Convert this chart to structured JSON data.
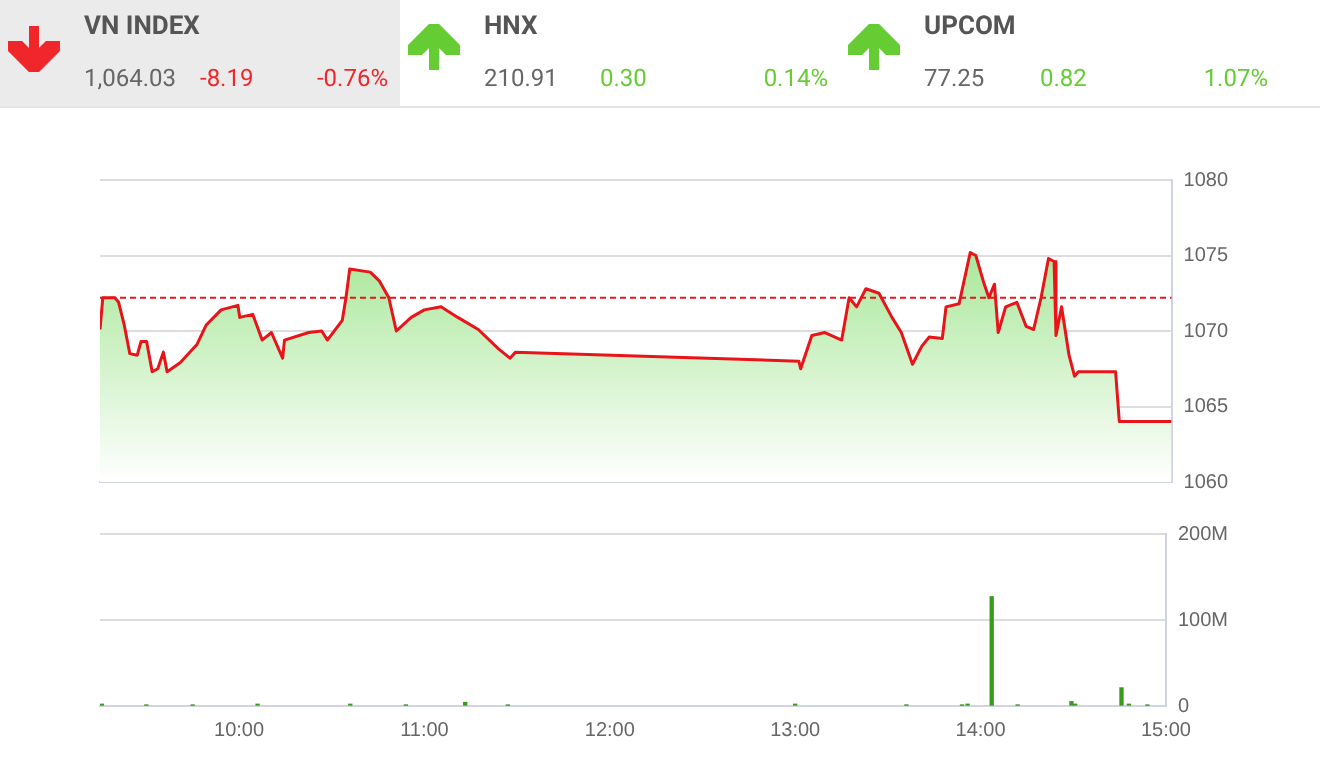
{
  "chart_data": [
    {
      "type": "other",
      "title": "VN INDEX",
      "annotations": [
        "1,064.03",
        "-8.19",
        "-0.76%"
      ],
      "color": "#f0262b"
    },
    {
      "type": "other",
      "title": "HNX",
      "annotations": [
        "210.91",
        "0.30",
        "0.14%"
      ],
      "color": "#66cc33"
    },
    {
      "type": "other",
      "title": "UPCOM",
      "annotations": [
        "77.25",
        "0.82",
        "1.07%"
      ],
      "color": "#66cc33"
    },
    {
      "type": "area",
      "xlim": [
        9.25,
        15
      ],
      "ylim": [
        1060,
        1080
      ],
      "yticks": [
        1060,
        1065,
        1070,
        1075,
        1080
      ],
      "grid": "y",
      "tick_labels": "y",
      "ref_lines": [
        {
          "axis": "y",
          "value": 1072.2,
          "color": "#e8141a",
          "line_style": "dashed"
        }
      ],
      "series": [
        {
          "color": "#e8141a",
          "x": [
            9.25,
            9.265,
            9.33,
            9.35,
            9.38,
            9.41,
            9.45,
            9.47,
            9.5,
            9.53,
            9.56,
            9.59,
            9.61,
            9.68,
            9.77,
            9.82,
            9.9,
            9.99,
            10.0,
            10.07,
            10.12,
            10.17,
            10.23,
            10.24,
            10.37,
            10.44,
            10.47,
            10.55,
            10.57,
            10.59,
            10.7,
            10.75,
            10.8,
            10.84,
            10.92,
            10.99,
            11.08,
            11.17,
            11.28,
            11.39,
            11.45,
            11.48,
            13.0,
            13.01,
            13.07,
            13.14,
            13.23,
            13.27,
            13.31,
            13.36,
            13.43,
            13.5,
            13.55,
            13.61,
            13.66,
            13.7,
            13.77,
            13.79,
            13.86,
            13.92,
            13.95,
            13.99,
            14.02,
            14.05,
            14.07,
            14.11,
            14.17,
            14.22,
            14.26,
            14.3,
            14.34,
            14.37,
            14.38,
            14.41,
            14.45,
            14.48,
            14.5,
            14.7,
            14.72,
            15.0
          ],
          "values": [
            1070.1,
            1072.2,
            1072.2,
            1071.9,
            1070.4,
            1068.5,
            1068.4,
            1069.3,
            1069.3,
            1067.3,
            1067.5,
            1068.6,
            1067.3,
            1067.9,
            1069.1,
            1070.4,
            1071.4,
            1071.7,
            1070.9,
            1071.1,
            1069.4,
            1069.9,
            1068.2,
            1069.4,
            1069.9,
            1070.0,
            1069.4,
            1070.7,
            1072.2,
            1074.1,
            1073.9,
            1073.3,
            1072.2,
            1070.0,
            1070.9,
            1071.4,
            1071.6,
            1070.9,
            1070.1,
            1068.8,
            1068.2,
            1068.6,
            1068.0,
            1067.5,
            1069.7,
            1069.9,
            1069.4,
            1072.2,
            1071.6,
            1072.8,
            1072.5,
            1070.9,
            1069.9,
            1067.8,
            1069.0,
            1069.6,
            1069.5,
            1071.6,
            1071.8,
            1075.2,
            1075.0,
            1073.3,
            1072.2,
            1073.1,
            1069.9,
            1071.6,
            1071.9,
            1070.3,
            1070.1,
            1072.2,
            1074.8,
            1074.6,
            1069.7,
            1071.6,
            1068.4,
            1067.0,
            1067.3,
            1067.3,
            1064.0,
            1064.0
          ]
        }
      ]
    },
    {
      "type": "bar",
      "xlim": [
        9.25,
        15
      ],
      "xticks": [
        {
          "value": 10,
          "label": "10:00"
        },
        {
          "value": 11,
          "label": "11:00"
        },
        {
          "value": 12,
          "label": "12:00"
        },
        {
          "value": 13,
          "label": "13:00"
        },
        {
          "value": 14,
          "label": "14:00"
        },
        {
          "value": 15,
          "label": "15:00"
        }
      ],
      "ylim": [
        0,
        200
      ],
      "yticks": [
        0,
        {
          "value": 100,
          "label": "100M"
        },
        {
          "value": 200,
          "label": "200M"
        }
      ],
      "grid": "y",
      "series": [
        {
          "color": "#3a9a1a",
          "x": [
            9.26,
            9.5,
            9.75,
            10.1,
            10.6,
            10.9,
            11.22,
            11.45,
            13.0,
            13.6,
            13.9,
            13.93,
            14.06,
            14.2,
            14.49,
            14.51,
            14.76,
            14.8,
            14.9
          ],
          "values": [
            2,
            1,
            1,
            2,
            2,
            1,
            4,
            1,
            2,
            1,
            1,
            2,
            127,
            1,
            5,
            2,
            21,
            2,
            1
          ]
        }
      ]
    }
  ]
}
